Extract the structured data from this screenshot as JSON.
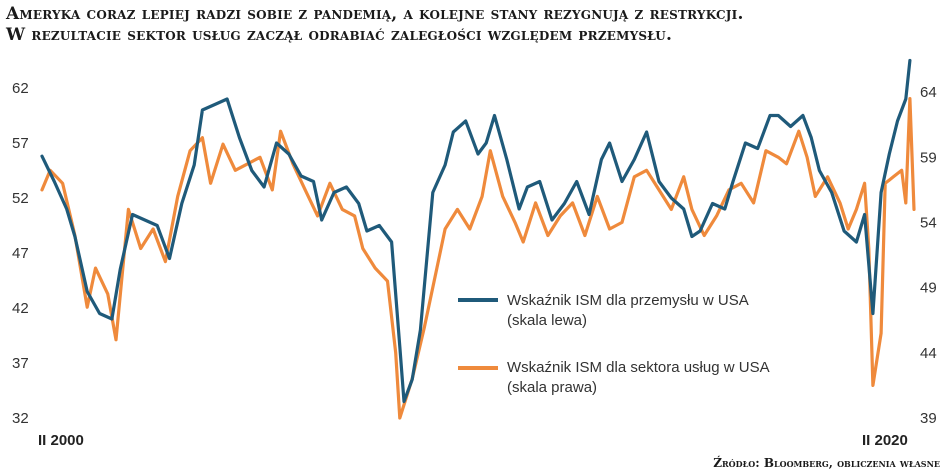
{
  "title": {
    "line1": "Ameryka coraz lepiej radzi sobie z pandemią, a kolejne stany rezygnują z restrykcji.",
    "line2": "W rezultacie sektor usług zaczął odrabiać zaległości względem przemysłu."
  },
  "source": "Źródło: Bloomberg, obliczenia własne",
  "chart_data": {
    "type": "line",
    "x_start": "II 2000",
    "x_end": "II 2020",
    "x_tick_labels": [
      "II 2000",
      "II 2020"
    ],
    "x_unit": "year",
    "x_range": [
      2000.1,
      2021.3
    ],
    "y_left": {
      "ticks": [
        32,
        37,
        42,
        47,
        52,
        57,
        62
      ],
      "range": [
        32,
        64
      ]
    },
    "y_right": {
      "ticks": [
        39,
        44,
        49,
        54,
        59,
        64
      ],
      "range": [
        39,
        66
      ]
    },
    "grid": false,
    "legend_position": "center-right",
    "colors": {
      "manufacturing": "#1f5a7a",
      "services": "#ef8a3c"
    },
    "series": [
      {
        "name": "Wskaźnik ISM dla przemysłu w USA",
        "name_line2": "(skala lewa)",
        "axis": "left",
        "points": [
          [
            2000.1,
            55.8
          ],
          [
            2000.4,
            53.5
          ],
          [
            2000.7,
            51.0
          ],
          [
            2000.9,
            48.5
          ],
          [
            2001.2,
            43.5
          ],
          [
            2001.5,
            41.5
          ],
          [
            2001.8,
            41.0
          ],
          [
            2002.0,
            45.5
          ],
          [
            2002.3,
            50.5
          ],
          [
            2002.6,
            50.0
          ],
          [
            2002.9,
            49.5
          ],
          [
            2003.2,
            46.5
          ],
          [
            2003.5,
            51.5
          ],
          [
            2003.8,
            55.0
          ],
          [
            2004.0,
            60.0
          ],
          [
            2004.3,
            60.5
          ],
          [
            2004.6,
            61.0
          ],
          [
            2004.9,
            57.5
          ],
          [
            2005.2,
            54.5
          ],
          [
            2005.5,
            53.0
          ],
          [
            2005.8,
            57.0
          ],
          [
            2006.1,
            56.0
          ],
          [
            2006.4,
            54.0
          ],
          [
            2006.7,
            53.5
          ],
          [
            2006.9,
            50.0
          ],
          [
            2007.2,
            52.5
          ],
          [
            2007.5,
            53.0
          ],
          [
            2007.8,
            51.5
          ],
          [
            2008.0,
            49.0
          ],
          [
            2008.3,
            49.5
          ],
          [
            2008.6,
            48.0
          ],
          [
            2008.8,
            38.5
          ],
          [
            2008.9,
            33.5
          ],
          [
            2009.1,
            35.5
          ],
          [
            2009.3,
            40.0
          ],
          [
            2009.6,
            52.5
          ],
          [
            2009.9,
            55.0
          ],
          [
            2010.1,
            58.0
          ],
          [
            2010.4,
            59.0
          ],
          [
            2010.7,
            56.0
          ],
          [
            2010.9,
            57.0
          ],
          [
            2011.1,
            59.5
          ],
          [
            2011.4,
            55.5
          ],
          [
            2011.7,
            51.0
          ],
          [
            2011.9,
            53.0
          ],
          [
            2012.2,
            53.5
          ],
          [
            2012.5,
            50.0
          ],
          [
            2012.8,
            51.5
          ],
          [
            2013.1,
            53.5
          ],
          [
            2013.4,
            50.5
          ],
          [
            2013.7,
            55.5
          ],
          [
            2013.9,
            57.0
          ],
          [
            2014.2,
            53.5
          ],
          [
            2014.5,
            55.5
          ],
          [
            2014.8,
            58.0
          ],
          [
            2015.1,
            53.5
          ],
          [
            2015.4,
            52.0
          ],
          [
            2015.7,
            51.0
          ],
          [
            2015.9,
            48.5
          ],
          [
            2016.1,
            49.0
          ],
          [
            2016.4,
            51.5
          ],
          [
            2016.7,
            51.0
          ],
          [
            2016.9,
            53.5
          ],
          [
            2017.2,
            57.0
          ],
          [
            2017.5,
            56.5
          ],
          [
            2017.8,
            59.5
          ],
          [
            2018.0,
            59.5
          ],
          [
            2018.3,
            58.5
          ],
          [
            2018.6,
            59.5
          ],
          [
            2018.8,
            57.5
          ],
          [
            2019.0,
            54.5
          ],
          [
            2019.3,
            52.5
          ],
          [
            2019.6,
            49.0
          ],
          [
            2019.9,
            48.0
          ],
          [
            2020.1,
            50.5
          ],
          [
            2020.3,
            41.5
          ],
          [
            2020.5,
            52.5
          ],
          [
            2020.7,
            56.0
          ],
          [
            2020.9,
            59.0
          ],
          [
            2021.1,
            61.0
          ],
          [
            2021.2,
            64.5
          ]
        ]
      },
      {
        "name": "Wskaźnik ISM dla sektora usług w USA",
        "name_line2": "(skala prawa)",
        "axis": "right",
        "points": [
          [
            2000.1,
            56.5
          ],
          [
            2000.3,
            58.0
          ],
          [
            2000.6,
            57.0
          ],
          [
            2000.9,
            53.0
          ],
          [
            2001.2,
            47.5
          ],
          [
            2001.4,
            50.5
          ],
          [
            2001.7,
            48.5
          ],
          [
            2001.9,
            45.0
          ],
          [
            2002.2,
            55.0
          ],
          [
            2002.5,
            52.0
          ],
          [
            2002.8,
            53.5
          ],
          [
            2003.1,
            51.0
          ],
          [
            2003.4,
            56.0
          ],
          [
            2003.7,
            59.5
          ],
          [
            2004.0,
            60.5
          ],
          [
            2004.2,
            57.0
          ],
          [
            2004.5,
            60.0
          ],
          [
            2004.8,
            58.0
          ],
          [
            2005.1,
            58.5
          ],
          [
            2005.4,
            59.0
          ],
          [
            2005.7,
            56.5
          ],
          [
            2005.9,
            61.0
          ],
          [
            2006.2,
            58.5
          ],
          [
            2006.5,
            56.5
          ],
          [
            2006.8,
            54.5
          ],
          [
            2007.1,
            57.0
          ],
          [
            2007.4,
            55.0
          ],
          [
            2007.7,
            54.5
          ],
          [
            2007.9,
            52.0
          ],
          [
            2008.2,
            50.5
          ],
          [
            2008.5,
            49.5
          ],
          [
            2008.7,
            44.0
          ],
          [
            2008.8,
            39.0
          ],
          [
            2009.1,
            42.0
          ],
          [
            2009.4,
            46.0
          ],
          [
            2009.7,
            50.5
          ],
          [
            2009.9,
            53.5
          ],
          [
            2010.2,
            55.0
          ],
          [
            2010.5,
            53.5
          ],
          [
            2010.8,
            56.0
          ],
          [
            2011.0,
            59.5
          ],
          [
            2011.3,
            56.0
          ],
          [
            2011.6,
            54.0
          ],
          [
            2011.8,
            52.5
          ],
          [
            2012.1,
            55.5
          ],
          [
            2012.4,
            53.0
          ],
          [
            2012.7,
            54.5
          ],
          [
            2013.0,
            55.5
          ],
          [
            2013.3,
            53.0
          ],
          [
            2013.6,
            56.0
          ],
          [
            2013.9,
            53.5
          ],
          [
            2014.2,
            54.0
          ],
          [
            2014.5,
            57.5
          ],
          [
            2014.8,
            58.0
          ],
          [
            2015.1,
            56.5
          ],
          [
            2015.4,
            55.0
          ],
          [
            2015.7,
            57.5
          ],
          [
            2015.9,
            55.0
          ],
          [
            2016.2,
            53.0
          ],
          [
            2016.5,
            54.5
          ],
          [
            2016.8,
            56.5
          ],
          [
            2017.1,
            57.0
          ],
          [
            2017.4,
            55.5
          ],
          [
            2017.7,
            59.5
          ],
          [
            2018.0,
            59.0
          ],
          [
            2018.2,
            58.5
          ],
          [
            2018.5,
            61.0
          ],
          [
            2018.7,
            59.0
          ],
          [
            2018.9,
            56.0
          ],
          [
            2019.2,
            57.5
          ],
          [
            2019.5,
            55.5
          ],
          [
            2019.7,
            53.5
          ],
          [
            2019.9,
            55.0
          ],
          [
            2020.1,
            57.0
          ],
          [
            2020.2,
            52.0
          ],
          [
            2020.3,
            41.5
          ],
          [
            2020.5,
            45.5
          ],
          [
            2020.6,
            57.0
          ],
          [
            2020.8,
            57.5
          ],
          [
            2021.0,
            58.0
          ],
          [
            2021.1,
            55.5
          ],
          [
            2021.2,
            63.5
          ],
          [
            2021.3,
            55.0
          ]
        ]
      }
    ]
  }
}
